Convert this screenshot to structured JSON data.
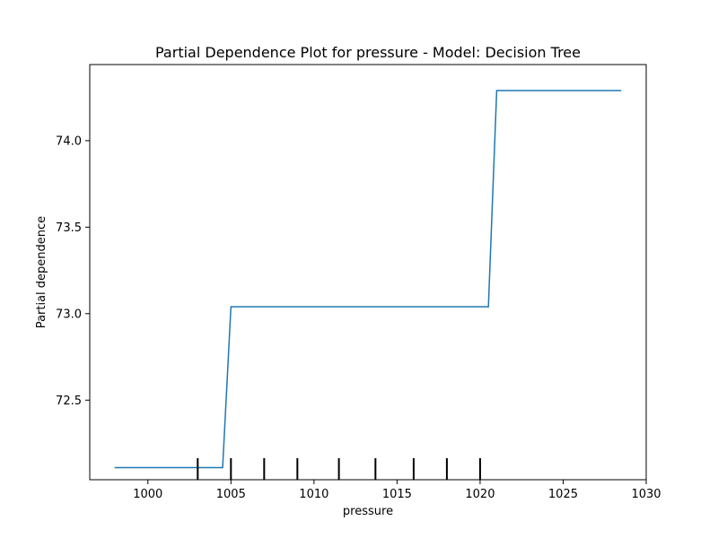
{
  "chart_data": {
    "type": "line",
    "title": "Partial Dependence Plot for pressure - Model: Decision Tree",
    "xlabel": "pressure",
    "ylabel": "Partial dependence",
    "xlim": [
      996.5,
      1030
    ],
    "ylim": [
      72.04,
      74.44
    ],
    "xticks": [
      1000,
      1005,
      1010,
      1015,
      1020,
      1025,
      1030
    ],
    "xtick_labels": [
      "1000",
      "1005",
      "1010",
      "1015",
      "1020",
      "1025",
      "1030"
    ],
    "yticks": [
      72.5,
      73.0,
      73.5,
      74.0
    ],
    "ytick_labels": [
      "72.5",
      "73.0",
      "73.5",
      "74.0"
    ],
    "grid": false,
    "series": [
      {
        "color": "#1f77b4",
        "x": [
          998.0,
          1004.5,
          1005.0,
          1020.5,
          1021.0,
          1028.5
        ],
        "y": [
          72.11,
          72.11,
          73.04,
          73.04,
          74.29,
          74.29
        ]
      }
    ],
    "rug": {
      "color": "#000000",
      "x": [
        1003.0,
        1005.0,
        1007.0,
        1009.0,
        1011.5,
        1013.7,
        1016.0,
        1018.0,
        1020.0
      ]
    }
  }
}
